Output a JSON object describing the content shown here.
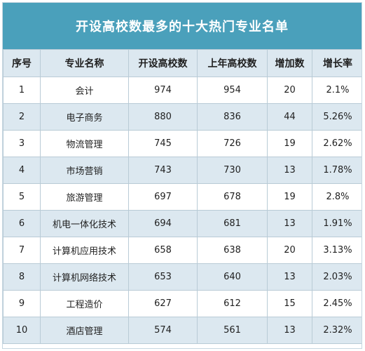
{
  "chart_data": {
    "type": "table",
    "title": "开设高校数最多的十大热门专业名单",
    "columns": [
      "序号",
      "专业名称",
      "开设高校数",
      "上年高校数",
      "增加数",
      "增长率"
    ],
    "rows": [
      [
        "1",
        "会计",
        "974",
        "954",
        "20",
        "2.1%"
      ],
      [
        "2",
        "电子商务",
        "880",
        "836",
        "44",
        "5.26%"
      ],
      [
        "3",
        "物流管理",
        "745",
        "726",
        "19",
        "2.62%"
      ],
      [
        "4",
        "市场营销",
        "743",
        "730",
        "13",
        "1.78%"
      ],
      [
        "5",
        "旅游管理",
        "697",
        "678",
        "19",
        "2.8%"
      ],
      [
        "6",
        "机电一体化技术",
        "694",
        "681",
        "13",
        "1.91%"
      ],
      [
        "7",
        "计算机应用技术",
        "658",
        "638",
        "20",
        "3.13%"
      ],
      [
        "8",
        "计算机网络技术",
        "653",
        "640",
        "13",
        "2.03%"
      ],
      [
        "9",
        "工程造价",
        "627",
        "612",
        "15",
        "2.45%"
      ],
      [
        "10",
        "酒店管理",
        "574",
        "561",
        "13",
        "2.32%"
      ]
    ]
  },
  "colors": {
    "title_background": "#4aa0bb",
    "title_text": "#ffffff",
    "header_background": "#dce8f0",
    "stripe_background": "#dce8f0",
    "border": "#b9cbd6"
  }
}
